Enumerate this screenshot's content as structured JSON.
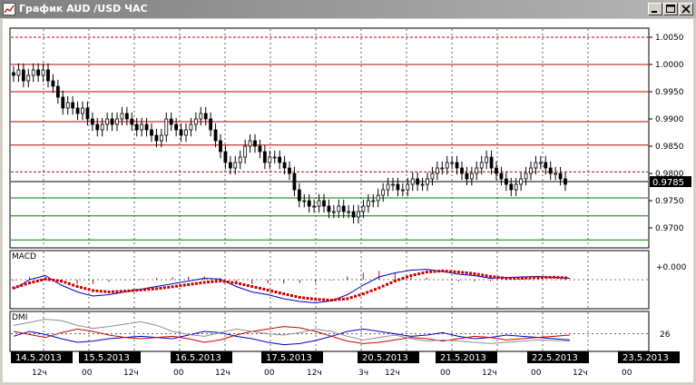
{
  "window": {
    "title": "График AUD /USD ЧАС",
    "icon": "chart-icon",
    "buttons": [
      "minimize-icon",
      "maximize-icon",
      "close-icon"
    ]
  },
  "colors": {
    "candles": "#000000",
    "resistance": "#c00000",
    "support": "#008000",
    "macd_line": "#0000cc",
    "macd_signal": "#cc0000",
    "macd_hist": "#cc0000",
    "dmi_plus": "#0000cc",
    "dmi_minus": "#cc0000",
    "dmi_adx": "#909090"
  },
  "chart_data": [
    {
      "type": "candlestick",
      "title": "",
      "ylim": [
        0.9665,
        1.0065
      ],
      "price_labels": [
        "1.0050",
        "1.0000",
        "0.9950",
        "0.9900",
        "0.9850",
        "0.9800",
        "0.9750",
        "0.9700"
      ],
      "last_price_label": "0.9785",
      "last_price": 0.9785,
      "resistance_levels": [
        1.005,
        1.0,
        0.995,
        0.9895,
        0.9852,
        0.9803
      ],
      "dashed_levels": [
        1.005,
        0.9803
      ],
      "support_levels": [
        0.9755,
        0.9722,
        0.9678
      ],
      "close_series": [
        0.998,
        0.999,
        0.997,
        0.998,
        0.999,
        0.998,
        0.999,
        0.997,
        0.996,
        0.994,
        0.992,
        0.993,
        0.992,
        0.991,
        0.992,
        0.99,
        0.989,
        0.988,
        0.989,
        0.99,
        0.989,
        0.99,
        0.991,
        0.99,
        0.989,
        0.988,
        0.989,
        0.988,
        0.987,
        0.986,
        0.987,
        0.99,
        0.989,
        0.988,
        0.987,
        0.988,
        0.989,
        0.99,
        0.991,
        0.99,
        0.988,
        0.986,
        0.984,
        0.982,
        0.981,
        0.982,
        0.983,
        0.985,
        0.986,
        0.985,
        0.984,
        0.982,
        0.983,
        0.983,
        0.982,
        0.981,
        0.98,
        0.977,
        0.975,
        0.975,
        0.974,
        0.974,
        0.975,
        0.974,
        0.973,
        0.973,
        0.974,
        0.973,
        0.973,
        0.972,
        0.973,
        0.974,
        0.975,
        0.975,
        0.976,
        0.977,
        0.978,
        0.978,
        0.977,
        0.977,
        0.978,
        0.979,
        0.978,
        0.978,
        0.979,
        0.98,
        0.981,
        0.981,
        0.982,
        0.982,
        0.981,
        0.98,
        0.979,
        0.98,
        0.981,
        0.982,
        0.983,
        0.981,
        0.98,
        0.979,
        0.978,
        0.977,
        0.978,
        0.979,
        0.98,
        0.981,
        0.982,
        0.982,
        0.981,
        0.98,
        0.98,
        0.979,
        0.978
      ]
    },
    {
      "type": "line",
      "title": "MACD",
      "price_labels": [
        "+0.000"
      ],
      "ylim": [
        -1,
        1
      ],
      "series": [
        {
          "values": [
            -0.35,
            0.0,
            0.15,
            -0.2,
            -0.45,
            -0.6,
            -0.55,
            -0.45,
            -0.35,
            -0.25,
            -0.15,
            -0.05,
            0.05,
            0.02,
            -0.25,
            -0.45,
            -0.55,
            -0.7,
            -0.8,
            -0.85,
            -0.78,
            -0.55,
            -0.2,
            0.1,
            0.25,
            0.35,
            0.38,
            0.3,
            0.2,
            0.15,
            0.05,
            0.08,
            0.1,
            0.12,
            0.08,
            0.05
          ]
        },
        {
          "values": [
            -0.3,
            -0.12,
            0.02,
            -0.05,
            -0.25,
            -0.4,
            -0.45,
            -0.42,
            -0.38,
            -0.33,
            -0.26,
            -0.18,
            -0.1,
            -0.05,
            -0.12,
            -0.25,
            -0.38,
            -0.52,
            -0.65,
            -0.72,
            -0.75,
            -0.7,
            -0.52,
            -0.3,
            -0.05,
            0.15,
            0.28,
            0.32,
            0.28,
            0.22,
            0.12,
            0.05,
            0.05,
            0.08,
            0.09,
            0.06
          ]
        }
      ]
    },
    {
      "type": "line",
      "title": "DMI",
      "price_labels": [
        "26"
      ],
      "ylim": [
        0,
        60
      ],
      "series": [
        {
          "values": [
            22,
            30,
            25,
            18,
            12,
            14,
            18,
            20,
            22,
            20,
            18,
            24,
            30,
            28,
            22,
            18,
            12,
            8,
            10,
            15,
            22,
            30,
            34,
            30,
            26,
            22,
            24,
            28,
            22,
            18,
            20,
            24,
            22,
            20,
            18,
            16
          ]
        },
        {
          "values": [
            30,
            25,
            20,
            28,
            34,
            30,
            24,
            20,
            18,
            20,
            22,
            18,
            12,
            16,
            24,
            30,
            34,
            38,
            36,
            30,
            22,
            14,
            10,
            12,
            16,
            20,
            18,
            14,
            18,
            22,
            20,
            16,
            18,
            20,
            22,
            24
          ]
        },
        {
          "values": [
            40,
            45,
            50,
            48,
            40,
            35,
            38,
            42,
            46,
            40,
            30,
            25,
            22,
            28,
            34,
            30,
            26,
            24,
            28,
            34,
            30,
            22,
            16,
            20,
            24,
            18,
            14,
            16,
            14,
            12,
            10,
            12,
            14,
            16,
            15,
            14
          ]
        }
      ]
    }
  ],
  "time_axis": {
    "dates": [
      "14.5.2013",
      "15.5.2013",
      "16.5.2013",
      "17.5.2013",
      "20.5.2013",
      "21.5.2013",
      "22.5.2013",
      "23.5.2013"
    ],
    "hours": [
      "12ч",
      "00",
      "12ч",
      "00",
      "12ч",
      "00",
      "12ч",
      "3ч",
      "12ч",
      "00",
      "12ч",
      "00",
      "12ч",
      "00"
    ]
  }
}
